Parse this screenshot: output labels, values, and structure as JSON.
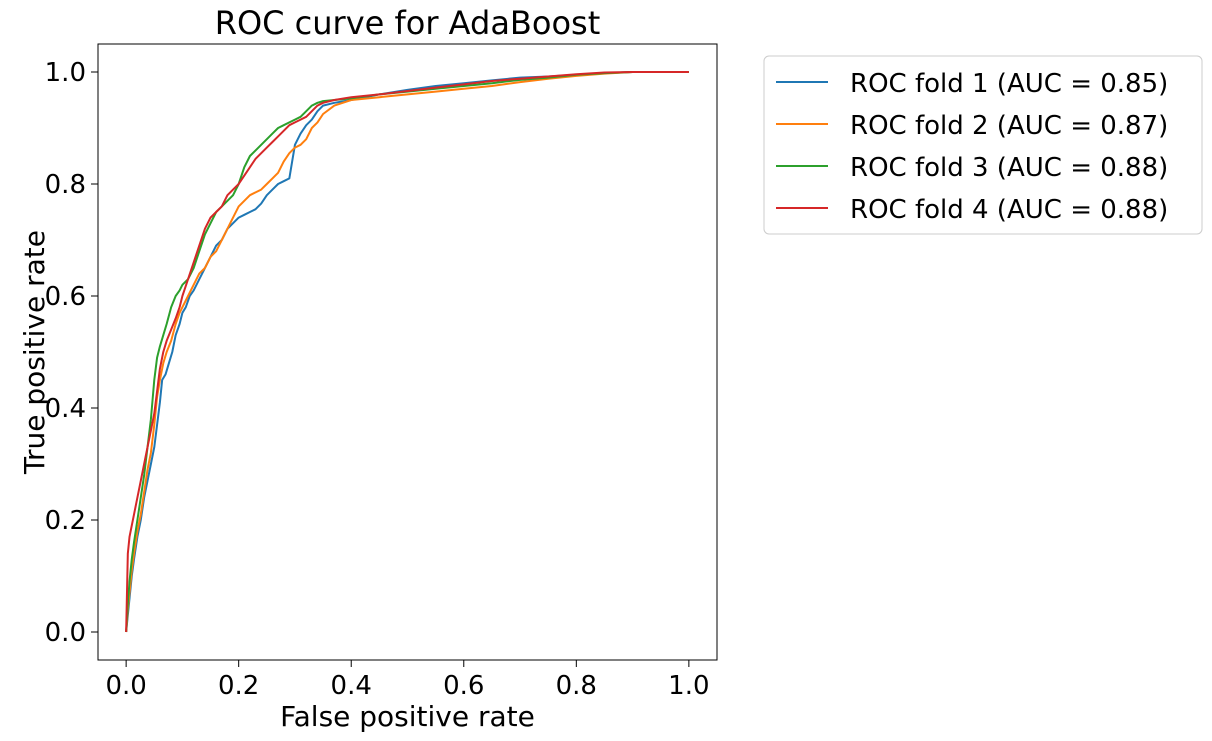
{
  "chart_data": {
    "type": "line",
    "title": "ROC curve for AdaBoost",
    "xlabel": "False positive rate",
    "ylabel": "True positive rate",
    "xlim": [
      -0.05,
      1.05
    ],
    "ylim": [
      -0.05,
      1.05
    ],
    "xticks": [
      0.0,
      0.2,
      0.4,
      0.6,
      0.8,
      1.0
    ],
    "xtick_labels": [
      "0.0",
      "0.2",
      "0.4",
      "0.6",
      "0.8",
      "1.0"
    ],
    "yticks": [
      0.0,
      0.2,
      0.4,
      0.6,
      0.8,
      1.0
    ],
    "ytick_labels": [
      "0.0",
      "0.2",
      "0.4",
      "0.6",
      "0.8",
      "1.0"
    ],
    "grid": false,
    "legend_position": "outside-upper-right",
    "series": [
      {
        "name": "ROC fold 1 (AUC = 0.85)",
        "color": "#1f77b4",
        "x": [
          0.0,
          0.003,
          0.006,
          0.01,
          0.014,
          0.02,
          0.026,
          0.032,
          0.038,
          0.044,
          0.05,
          0.055,
          0.06,
          0.064,
          0.07,
          0.076,
          0.082,
          0.088,
          0.095,
          0.1,
          0.106,
          0.113,
          0.12,
          0.13,
          0.14,
          0.15,
          0.16,
          0.17,
          0.18,
          0.19,
          0.2,
          0.21,
          0.22,
          0.23,
          0.24,
          0.25,
          0.26,
          0.27,
          0.28,
          0.29,
          0.295,
          0.3,
          0.31,
          0.32,
          0.33,
          0.34,
          0.35,
          0.37,
          0.4,
          0.45,
          0.5,
          0.55,
          0.6,
          0.65,
          0.7,
          0.75,
          0.8,
          0.85,
          0.9,
          0.95,
          1.0
        ],
        "y": [
          0.0,
          0.03,
          0.06,
          0.1,
          0.13,
          0.17,
          0.2,
          0.24,
          0.27,
          0.3,
          0.33,
          0.37,
          0.41,
          0.45,
          0.46,
          0.48,
          0.5,
          0.53,
          0.55,
          0.57,
          0.58,
          0.6,
          0.61,
          0.63,
          0.65,
          0.67,
          0.69,
          0.7,
          0.72,
          0.73,
          0.74,
          0.745,
          0.75,
          0.755,
          0.765,
          0.78,
          0.79,
          0.8,
          0.805,
          0.81,
          0.84,
          0.87,
          0.89,
          0.905,
          0.915,
          0.93,
          0.94,
          0.945,
          0.95,
          0.96,
          0.968,
          0.975,
          0.98,
          0.985,
          0.99,
          0.992,
          0.995,
          0.998,
          1.0,
          1.0,
          1.0
        ]
      },
      {
        "name": "ROC fold 2 (AUC = 0.87)",
        "color": "#ff7f0e",
        "x": [
          0.0,
          0.003,
          0.006,
          0.01,
          0.014,
          0.02,
          0.026,
          0.032,
          0.038,
          0.044,
          0.05,
          0.055,
          0.06,
          0.066,
          0.072,
          0.08,
          0.088,
          0.095,
          0.1,
          0.11,
          0.12,
          0.13,
          0.14,
          0.15,
          0.16,
          0.17,
          0.18,
          0.19,
          0.2,
          0.21,
          0.22,
          0.23,
          0.24,
          0.25,
          0.26,
          0.27,
          0.28,
          0.29,
          0.3,
          0.31,
          0.32,
          0.33,
          0.34,
          0.35,
          0.37,
          0.4,
          0.45,
          0.5,
          0.55,
          0.6,
          0.65,
          0.7,
          0.75,
          0.8,
          0.85,
          0.9,
          0.95,
          1.0
        ],
        "y": [
          0.0,
          0.04,
          0.07,
          0.11,
          0.14,
          0.18,
          0.21,
          0.25,
          0.29,
          0.32,
          0.37,
          0.42,
          0.45,
          0.48,
          0.5,
          0.52,
          0.55,
          0.57,
          0.58,
          0.6,
          0.62,
          0.64,
          0.65,
          0.67,
          0.68,
          0.7,
          0.72,
          0.74,
          0.76,
          0.77,
          0.78,
          0.785,
          0.79,
          0.8,
          0.81,
          0.82,
          0.84,
          0.855,
          0.865,
          0.87,
          0.88,
          0.9,
          0.91,
          0.925,
          0.94,
          0.95,
          0.955,
          0.96,
          0.965,
          0.97,
          0.975,
          0.982,
          0.988,
          0.993,
          0.997,
          1.0,
          1.0,
          1.0
        ]
      },
      {
        "name": "ROC fold 3 (AUC = 0.88)",
        "color": "#2ca02c",
        "x": [
          0.0,
          0.003,
          0.006,
          0.01,
          0.014,
          0.02,
          0.026,
          0.032,
          0.038,
          0.044,
          0.05,
          0.055,
          0.06,
          0.066,
          0.072,
          0.08,
          0.088,
          0.095,
          0.1,
          0.11,
          0.12,
          0.13,
          0.14,
          0.15,
          0.16,
          0.17,
          0.18,
          0.19,
          0.2,
          0.21,
          0.22,
          0.23,
          0.24,
          0.25,
          0.26,
          0.27,
          0.28,
          0.29,
          0.3,
          0.31,
          0.32,
          0.33,
          0.34,
          0.35,
          0.37,
          0.4,
          0.45,
          0.5,
          0.55,
          0.6,
          0.65,
          0.7,
          0.75,
          0.8,
          0.85,
          0.9,
          0.95,
          1.0
        ],
        "y": [
          0.0,
          0.05,
          0.09,
          0.13,
          0.16,
          0.2,
          0.24,
          0.28,
          0.33,
          0.38,
          0.45,
          0.49,
          0.51,
          0.53,
          0.55,
          0.58,
          0.6,
          0.61,
          0.62,
          0.63,
          0.65,
          0.68,
          0.71,
          0.73,
          0.75,
          0.76,
          0.77,
          0.78,
          0.8,
          0.83,
          0.85,
          0.86,
          0.87,
          0.88,
          0.89,
          0.9,
          0.905,
          0.91,
          0.915,
          0.92,
          0.93,
          0.94,
          0.945,
          0.948,
          0.95,
          0.953,
          0.96,
          0.965,
          0.97,
          0.975,
          0.98,
          0.986,
          0.99,
          0.995,
          0.998,
          1.0,
          1.0,
          1.0
        ]
      },
      {
        "name": "ROC fold 4 (AUC = 0.88)",
        "color": "#d62728",
        "x": [
          0.0,
          0.003,
          0.006,
          0.01,
          0.014,
          0.02,
          0.026,
          0.032,
          0.038,
          0.044,
          0.05,
          0.055,
          0.06,
          0.066,
          0.072,
          0.08,
          0.088,
          0.095,
          0.1,
          0.11,
          0.12,
          0.13,
          0.14,
          0.15,
          0.16,
          0.17,
          0.18,
          0.19,
          0.2,
          0.21,
          0.22,
          0.23,
          0.24,
          0.25,
          0.26,
          0.27,
          0.28,
          0.29,
          0.3,
          0.31,
          0.32,
          0.33,
          0.34,
          0.35,
          0.37,
          0.4,
          0.45,
          0.5,
          0.55,
          0.6,
          0.65,
          0.7,
          0.75,
          0.8,
          0.85,
          0.9,
          0.95,
          1.0
        ],
        "y": [
          0.0,
          0.14,
          0.17,
          0.19,
          0.21,
          0.24,
          0.27,
          0.3,
          0.33,
          0.36,
          0.39,
          0.43,
          0.47,
          0.5,
          0.52,
          0.54,
          0.56,
          0.58,
          0.6,
          0.63,
          0.66,
          0.69,
          0.72,
          0.74,
          0.75,
          0.76,
          0.78,
          0.79,
          0.8,
          0.815,
          0.83,
          0.845,
          0.855,
          0.865,
          0.875,
          0.885,
          0.895,
          0.905,
          0.91,
          0.915,
          0.92,
          0.93,
          0.94,
          0.945,
          0.95,
          0.955,
          0.96,
          0.966,
          0.972,
          0.978,
          0.984,
          0.988,
          0.992,
          0.996,
          0.999,
          1.0,
          1.0,
          1.0
        ]
      }
    ]
  }
}
